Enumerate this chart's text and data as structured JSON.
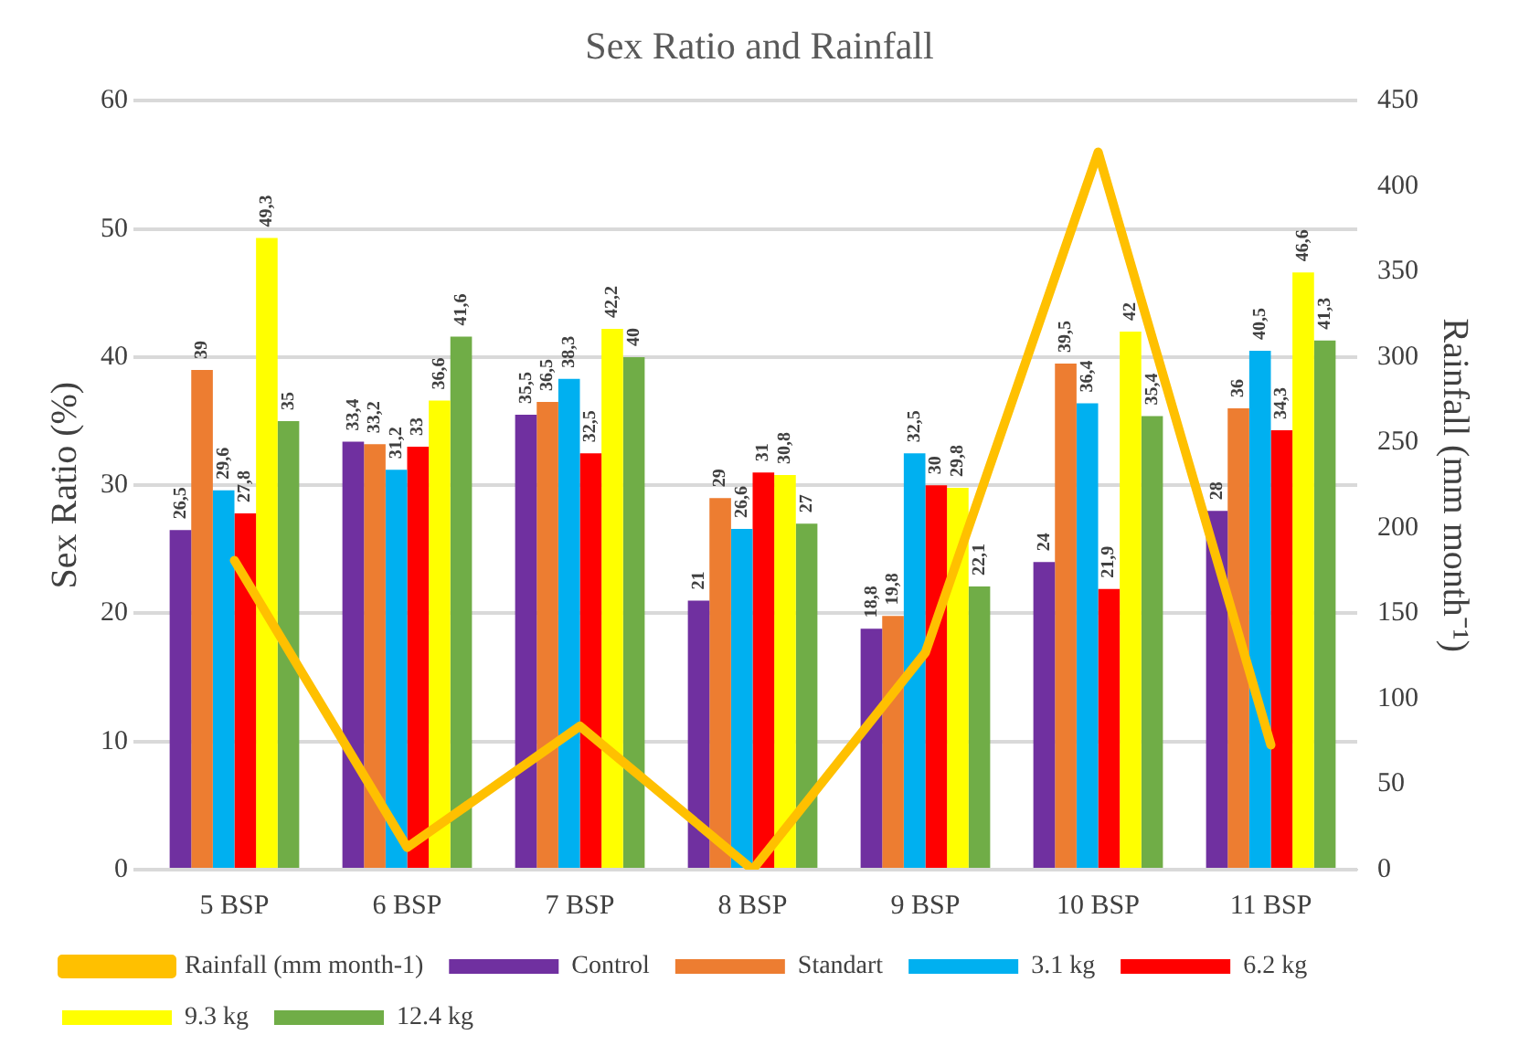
{
  "chart_data": {
    "type": "bar",
    "title": "Sex Ratio and Rainfall",
    "ylabel": "Sex Ratio (%)",
    "y2label": "Rainfall (mm month⁻¹)",
    "categories": [
      "5 BSP",
      "6 BSP",
      "7 BSP",
      "8 BSP",
      "9 BSP",
      "10 BSP",
      "11 BSP"
    ],
    "series": [
      {
        "name": "Control",
        "color": "#7030a0",
        "values": [
          26.5,
          33.4,
          35.5,
          21,
          18.8,
          24,
          28
        ],
        "value_labels": [
          "26,5",
          "33,4",
          "35,5",
          "21",
          "18,8",
          "24",
          "28"
        ]
      },
      {
        "name": "Standart",
        "color": "#ed7d31",
        "values": [
          39,
          33.2,
          36.5,
          29,
          19.8,
          39.5,
          36
        ],
        "value_labels": [
          "39",
          "33,2",
          "36,5",
          "29",
          "19,8",
          "39,5",
          "36"
        ]
      },
      {
        "name": "3.1 kg",
        "color": "#00b0f0",
        "values": [
          29.6,
          31.2,
          38.3,
          26.6,
          32.5,
          36.4,
          40.5
        ],
        "value_labels": [
          "29,6",
          "31,2",
          "38,3",
          "26,6",
          "32,5",
          "36,4",
          "40,5"
        ]
      },
      {
        "name": "6.2 kg",
        "color": "#ff0000",
        "values": [
          27.8,
          33,
          32.5,
          31,
          30,
          21.9,
          34.3
        ],
        "value_labels": [
          "27,8",
          "33",
          "32,5",
          "31",
          "30",
          "21,9",
          "34,3"
        ]
      },
      {
        "name": "9.3 kg",
        "color": "#ffff00",
        "values": [
          49.3,
          36.6,
          42.2,
          30.8,
          29.8,
          42,
          46.6
        ],
        "value_labels": [
          "49,3",
          "36,6",
          "42,2",
          "30,8",
          "29,8",
          "42",
          "46,6"
        ]
      },
      {
        "name": "12.4 kg",
        "color": "#70ad47",
        "values": [
          35,
          41.6,
          40,
          27,
          22.1,
          35.4,
          41.3
        ],
        "value_labels": [
          "35",
          "41,6",
          "40",
          "27",
          "22,1",
          "35,4",
          "41,3"
        ]
      },
      {
        "name": "Rainfall (mm month-1)",
        "type": "line",
        "axis": "y2",
        "color": "#ffc000",
        "values": [
          181,
          13,
          84,
          0,
          127,
          420,
          73
        ]
      }
    ],
    "ylim": [
      0,
      60
    ],
    "yticks": [
      0,
      10,
      20,
      30,
      40,
      50,
      60
    ],
    "y2lim": [
      0,
      450
    ],
    "y2ticks": [
      0,
      50,
      100,
      150,
      200,
      250,
      300,
      350,
      400,
      450
    ],
    "grid": "y",
    "legend": "bottom",
    "marker": "none"
  }
}
